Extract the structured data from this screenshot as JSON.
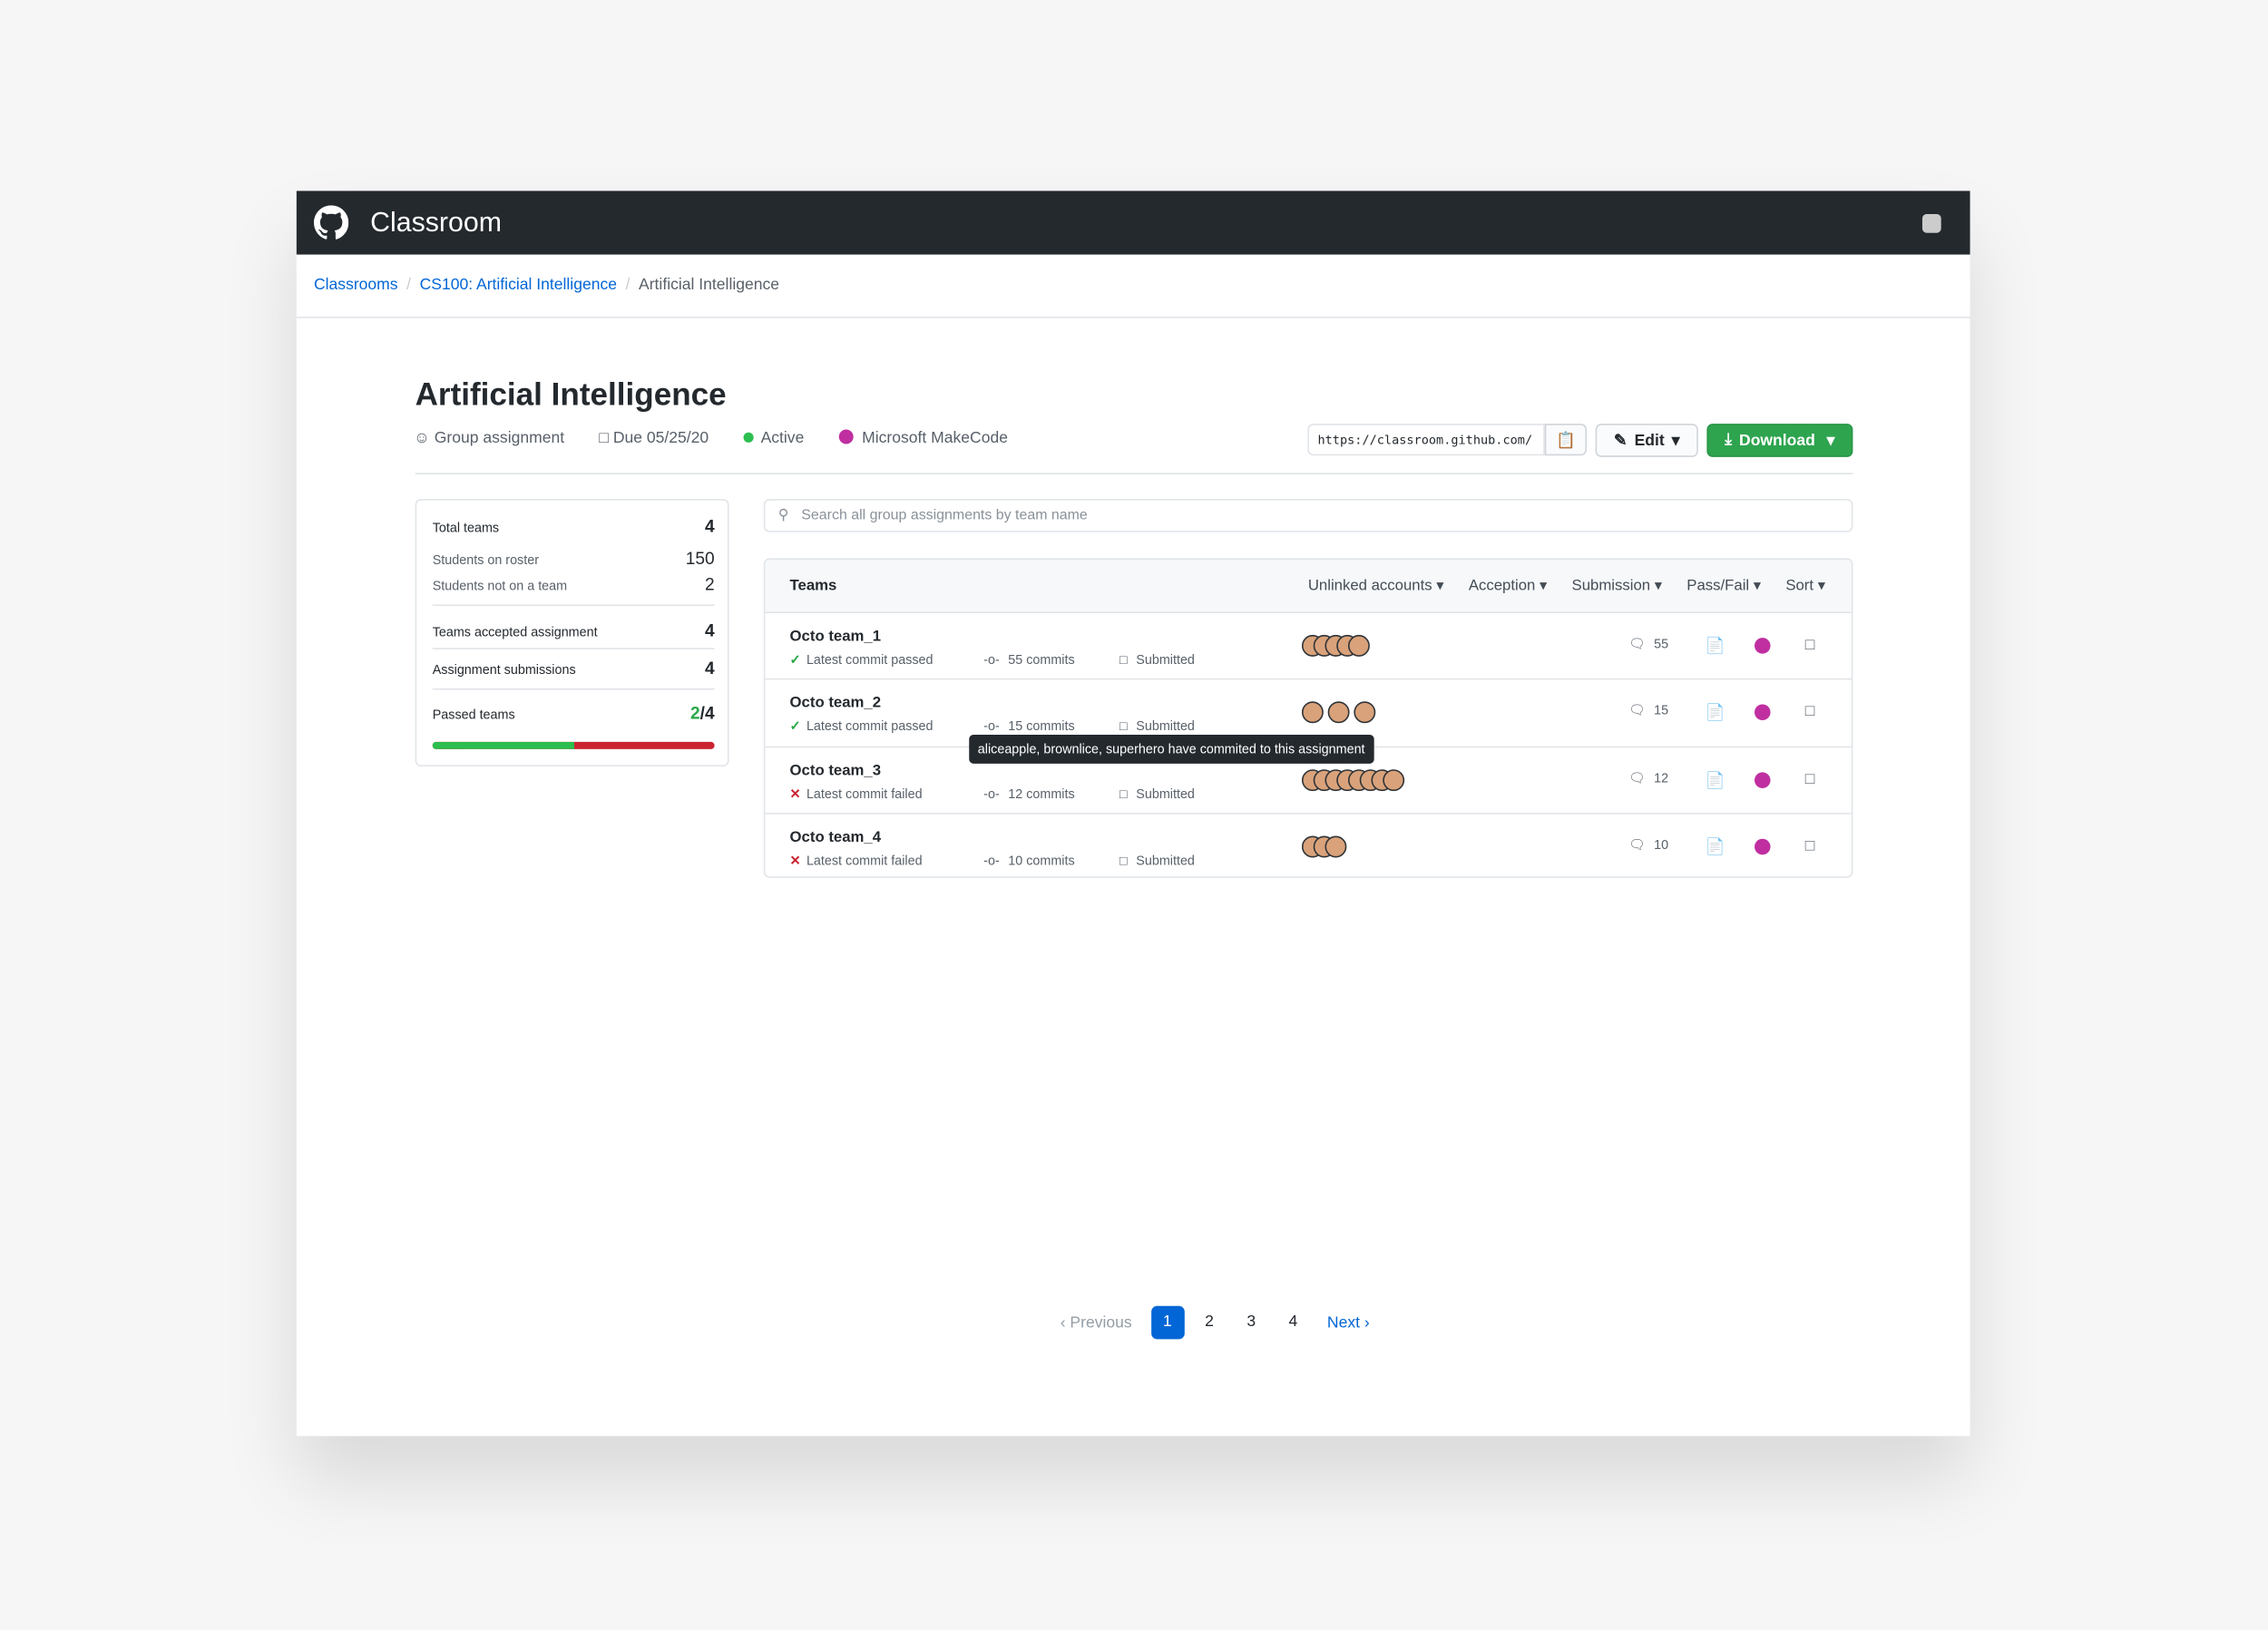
{
  "header": {
    "title": "Classroom"
  },
  "breadcrumbs": [
    "Classrooms",
    "CS100: Artificial Intelligence",
    "Artificial Intelligence"
  ],
  "assignment": {
    "title": "Artificial Intelligence",
    "type": "Group assignment",
    "due": "Due 05/25/20",
    "status": "Active",
    "editor": "Microsoft MakeCode",
    "url": "https://classroom.github.com/",
    "edit": "Edit",
    "download": "Download"
  },
  "search": {
    "placeholder": "Search all group assignments by team name"
  },
  "stats": {
    "total_teams": {
      "label": "Total teams",
      "value": 4
    },
    "roster": {
      "label": "Students on roster",
      "value": 150
    },
    "not_on_team": {
      "label": "Students not on a team",
      "value": 2
    },
    "accepted": {
      "label": "Teams accepted assignment",
      "value": 4
    },
    "submissions": {
      "label": "Assignment submissions",
      "value": 4
    },
    "passed": {
      "label": "Passed teams",
      "value": "2/4"
    }
  },
  "table": {
    "title": "Teams",
    "filters": [
      "Unlinked accounts",
      "Acception",
      "Submission",
      "Pass/Fail",
      "Sort"
    ],
    "rows": [
      {
        "name": "Octo team_1",
        "status": "Latest commit passed",
        "passed": true,
        "commits": "55 commits",
        "submission": "Submitted",
        "comments": 55
      },
      {
        "name": "Octo team_2",
        "status": "Latest commit passed",
        "passed": true,
        "commits": "15 commits",
        "submission": "Submitted",
        "comments": 15
      },
      {
        "name": "Octo team_3",
        "status": "Latest commit failed",
        "passed": false,
        "commits": "12 commits",
        "submission": "Submitted",
        "comments": 12
      },
      {
        "name": "Octo team_4",
        "status": "Latest commit failed",
        "passed": false,
        "commits": "10 commits",
        "submission": "Submitted",
        "comments": 10
      }
    ]
  },
  "tooltip": "aliceapple, brownlice, superhero have commited to this assignment",
  "pagination": {
    "previous": "Previous",
    "pages": [
      1,
      2,
      3,
      4
    ],
    "current": 1,
    "next": "Next"
  }
}
